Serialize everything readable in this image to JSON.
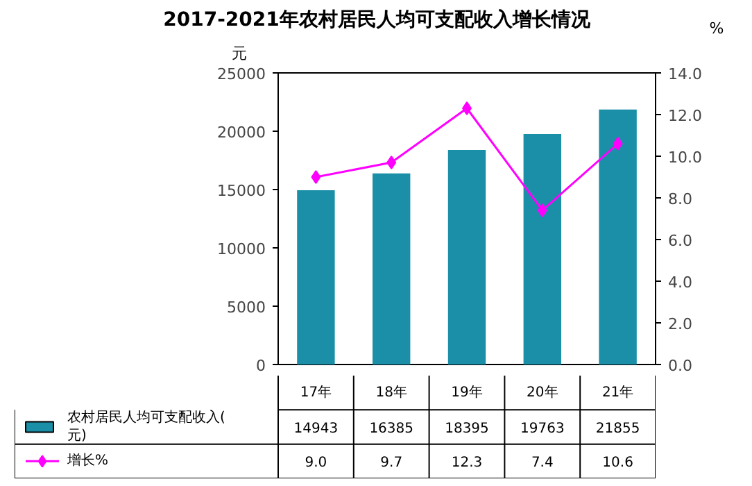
{
  "chart_data": {
    "type": "bar",
    "title": "2017-2021年农村居民人均可支配收入增长情况",
    "ylabel": "元",
    "y2label": "%",
    "categories": [
      "17年",
      "18年",
      "19年",
      "20年",
      "21年"
    ],
    "series": [
      {
        "name": "农村居民人均可支配收入(元)",
        "color": "#1b8fa8",
        "values": [
          14943,
          16385,
          18395,
          19763,
          21855
        ],
        "value_labels": [
          "14943",
          "16385",
          "18395",
          "19763",
          "21855"
        ]
      },
      {
        "name": "增长%",
        "type": "line",
        "axis": "y2",
        "color": "#ff00ff",
        "marker": "diamond",
        "values": [
          9.0,
          9.7,
          12.3,
          7.4,
          10.6
        ],
        "value_labels": [
          "9.0",
          "9.7",
          "12.3",
          "7.4",
          "10.6"
        ]
      }
    ],
    "ylim": [
      0,
      25000
    ],
    "yticks": [
      0,
      5000,
      10000,
      15000,
      20000,
      25000
    ],
    "y2lim": [
      0,
      14
    ],
    "y2ticks": [
      {
        "value": 0,
        "label": "0.0"
      },
      {
        "value": 2,
        "label": "2.0"
      },
      {
        "value": 4,
        "label": "4.0"
      },
      {
        "value": 6,
        "label": "6.0"
      },
      {
        "value": 8,
        "label": "8.0"
      },
      {
        "value": 10,
        "label": "10.0"
      },
      {
        "value": 12,
        "label": "12.0"
      },
      {
        "value": 14,
        "label": "14.0"
      }
    ],
    "legend": "bottom",
    "grid": false
  }
}
